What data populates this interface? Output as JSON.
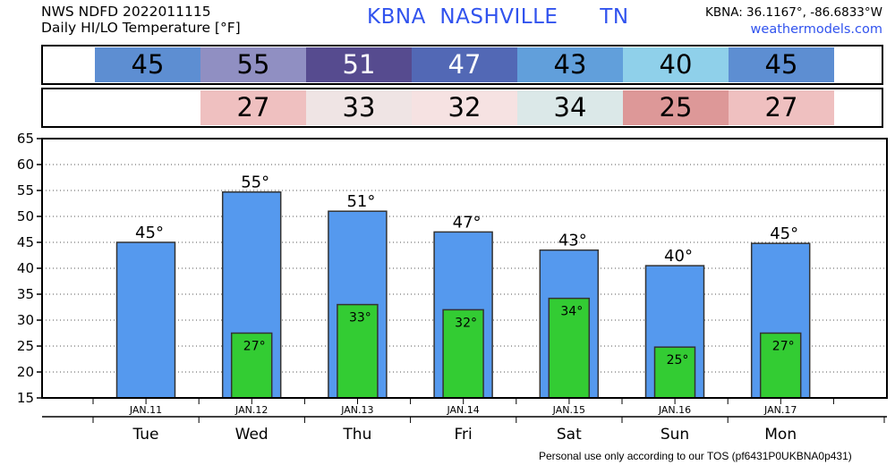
{
  "header": {
    "line1": "NWS NDFD 2022011115",
    "line2": "Daily HI/LO Temperature [°F]",
    "station": "KBNA  NASHVILLE      TN",
    "coords": "KBNA: 36.1167°, -86.6833°W",
    "site": "weathermodels.com"
  },
  "strips": {
    "hi": [
      {
        "text": "45",
        "color": "#5d8ed2",
        "light": false
      },
      {
        "text": "55",
        "color": "#908fc2",
        "light": false
      },
      {
        "text": "51",
        "color": "#564b8f",
        "light": true
      },
      {
        "text": "47",
        "color": "#5268b5",
        "light": true
      },
      {
        "text": "43",
        "color": "#619fdb",
        "light": false
      },
      {
        "text": "40",
        "color": "#8fd0ea",
        "light": false
      },
      {
        "text": "45",
        "color": "#5d8ed2",
        "light": false
      }
    ],
    "lo": [
      {
        "text": "",
        "color": "#ffffff",
        "light": false
      },
      {
        "text": "27",
        "color": "#efc0c0",
        "light": false
      },
      {
        "text": "33",
        "color": "#efe4e4",
        "light": false
      },
      {
        "text": "32",
        "color": "#f6e2e2",
        "light": false
      },
      {
        "text": "34",
        "color": "#dbe8e8",
        "light": false
      },
      {
        "text": "25",
        "color": "#dd9898",
        "light": false
      },
      {
        "text": "27",
        "color": "#efc0c0",
        "light": false
      }
    ]
  },
  "chart_data": {
    "type": "bar",
    "categories": [
      "JAN.11",
      "JAN.12",
      "JAN.13",
      "JAN.14",
      "JAN.15",
      "JAN.16",
      "JAN.17"
    ],
    "weekdays": [
      "Tue",
      "Wed",
      "Thu",
      "Fri",
      "Sat",
      "Sun",
      "Mon"
    ],
    "series": [
      {
        "values": [
          45,
          54.7,
          51,
          47,
          43.5,
          40.5,
          44.8
        ],
        "labels": [
          "45°",
          "55°",
          "51°",
          "47°",
          "43°",
          "40°",
          "45°"
        ],
        "color": "#5599ee"
      },
      {
        "values": [
          null,
          27.5,
          33,
          32,
          34.2,
          24.8,
          27.5
        ],
        "labels": [
          "",
          "27°",
          "33°",
          "32°",
          "34°",
          "25°",
          "27°"
        ],
        "color": "#33cc33"
      }
    ],
    "ylim": [
      15,
      65
    ],
    "yticks": [
      15,
      20,
      25,
      30,
      35,
      40,
      45,
      50,
      55,
      60,
      65
    ],
    "grid": true
  },
  "footer": "Personal use only according to our TOS (pf6431P0UKBNA0p431)"
}
